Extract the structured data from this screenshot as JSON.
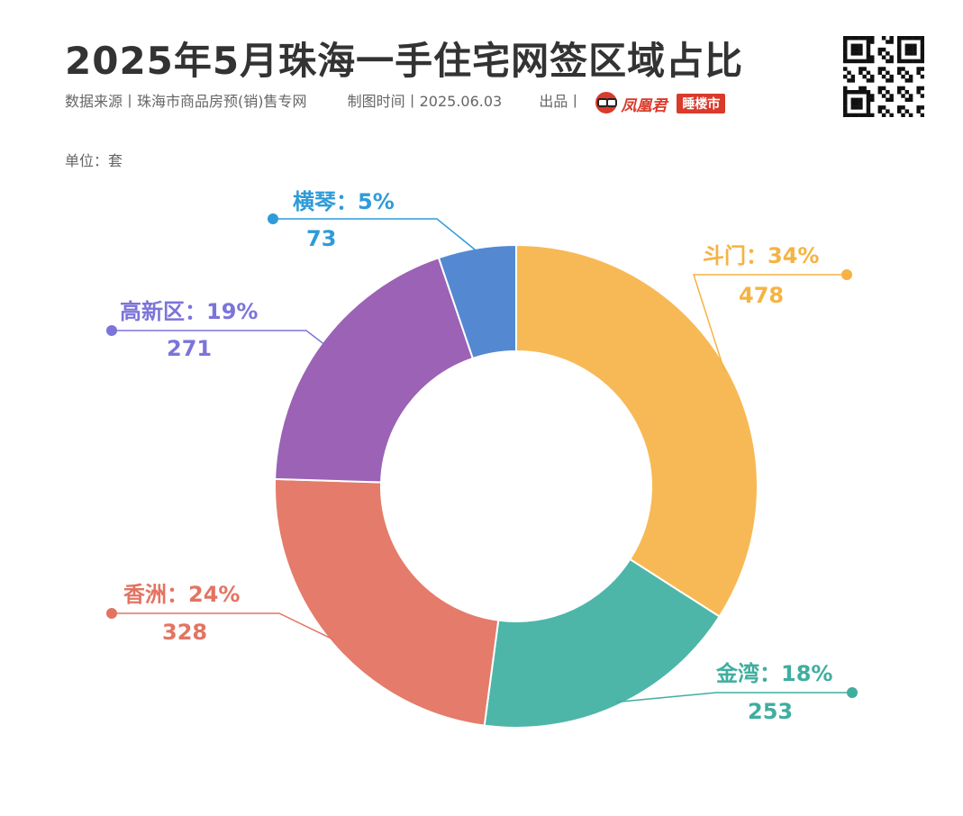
{
  "header": {
    "title": "2025年5月珠海一手住宅网签区域占比",
    "source": "数据来源丨珠海市商品房预(销)售专网",
    "date": "制图时间丨2025.06.03",
    "credit": "出品丨",
    "brand_name": "凤凰君",
    "brand_tag": "睡楼市",
    "unit": "单位：套"
  },
  "chart_data": {
    "type": "pie",
    "style": "donut",
    "series": [
      {
        "name": "斗门",
        "value": 478,
        "percent_label": "34%",
        "color": "#F7B955"
      },
      {
        "name": "金湾",
        "value": 253,
        "percent_label": "18%",
        "color": "#4DB6A8"
      },
      {
        "name": "香洲",
        "value": 328,
        "percent_label": "24%",
        "color": "#E57B6A"
      },
      {
        "name": "高新区",
        "value": 271,
        "percent_label": "19%",
        "color": "#9B62B5"
      },
      {
        "name": "横琴",
        "value": 73,
        "percent_label": "5%",
        "color": "#5489D2"
      }
    ],
    "label_colors": [
      "#F5B343",
      "#3FAE9E",
      "#E37462",
      "#7C74DA",
      "#2F9BD8"
    ],
    "start_angle": "12 o'clock",
    "direction": "clockwise",
    "legend": "none",
    "label_separator": "："
  }
}
